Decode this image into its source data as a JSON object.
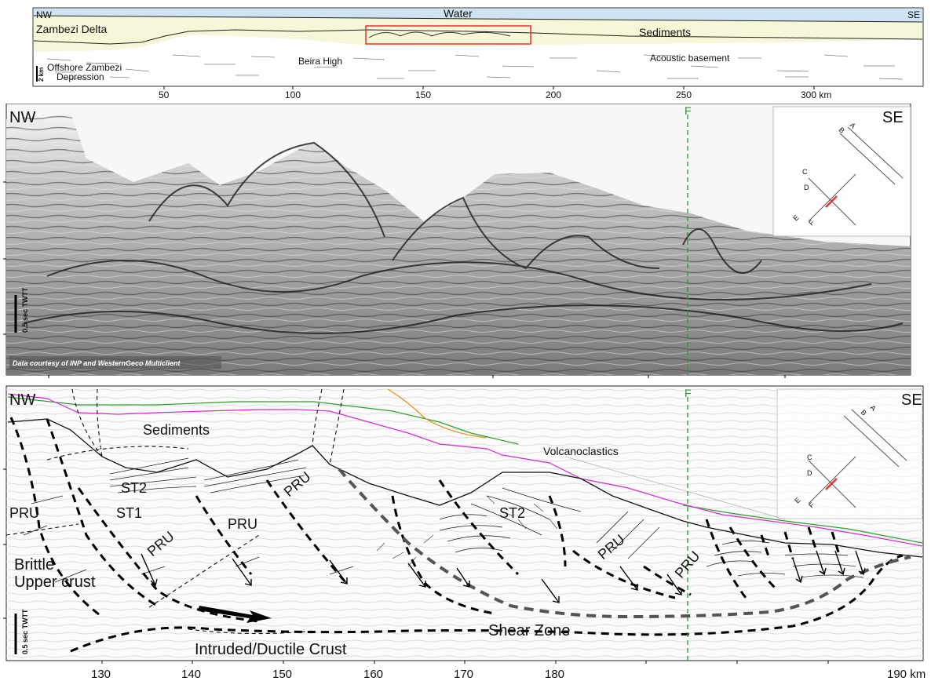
{
  "overview": {
    "nw": "NW",
    "se": "SE",
    "water": "Water",
    "zambezi_delta": "Zambezi Delta",
    "sediments": "Sediments",
    "beira_high": "Beira High",
    "acoustic_basement": "Acoustic basement",
    "offshore_line1": "Offshore Zambezi",
    "offshore_line2": "Depression",
    "scale_label": "2 km",
    "ticks": [
      "50",
      "100",
      "150",
      "200",
      "250",
      "300 km"
    ]
  },
  "seismic": {
    "nw": "NW",
    "se": "SE",
    "fault_label": "F",
    "time_scale": "0.5 sec TWTT",
    "credit": "Data courtesy of INP and WesternGeco Multiclient",
    "inset_labels": [
      "A",
      "B",
      "C",
      "D",
      "E",
      "F"
    ]
  },
  "interpretation": {
    "nw": "NW",
    "se": "SE",
    "fault_label": "F",
    "sediments": "Sediments",
    "volcanoclastics": "Volcanoclastics",
    "st2_left": "ST2",
    "st1": "ST1",
    "st2_right": "ST2",
    "pru_labels": [
      "PRU",
      "PRU",
      "PRU",
      "PRU",
      "PRU",
      "PRU"
    ],
    "brittle_line1": "Brittle",
    "brittle_line2": "Upper crust",
    "shear_zone": "Shear Zone",
    "ductile_crust": "Intruded/Ductile Crust",
    "time_scale": "0.5 sec TWTT",
    "inset_labels": [
      "A",
      "B",
      "C",
      "D",
      "E",
      "F"
    ],
    "ticks": [
      "130",
      "140",
      "150",
      "160",
      "170",
      "180",
      "190 km"
    ]
  },
  "colors": {
    "water": "#cfe3f2",
    "sediments": "#f6f6d8",
    "seafloor_green": "#2ca02c",
    "horizon_magenta": "#d62ad6",
    "horizon_orange": "#e8901a",
    "box_red": "#e8332a",
    "fault_green": "#1e9e1e"
  }
}
